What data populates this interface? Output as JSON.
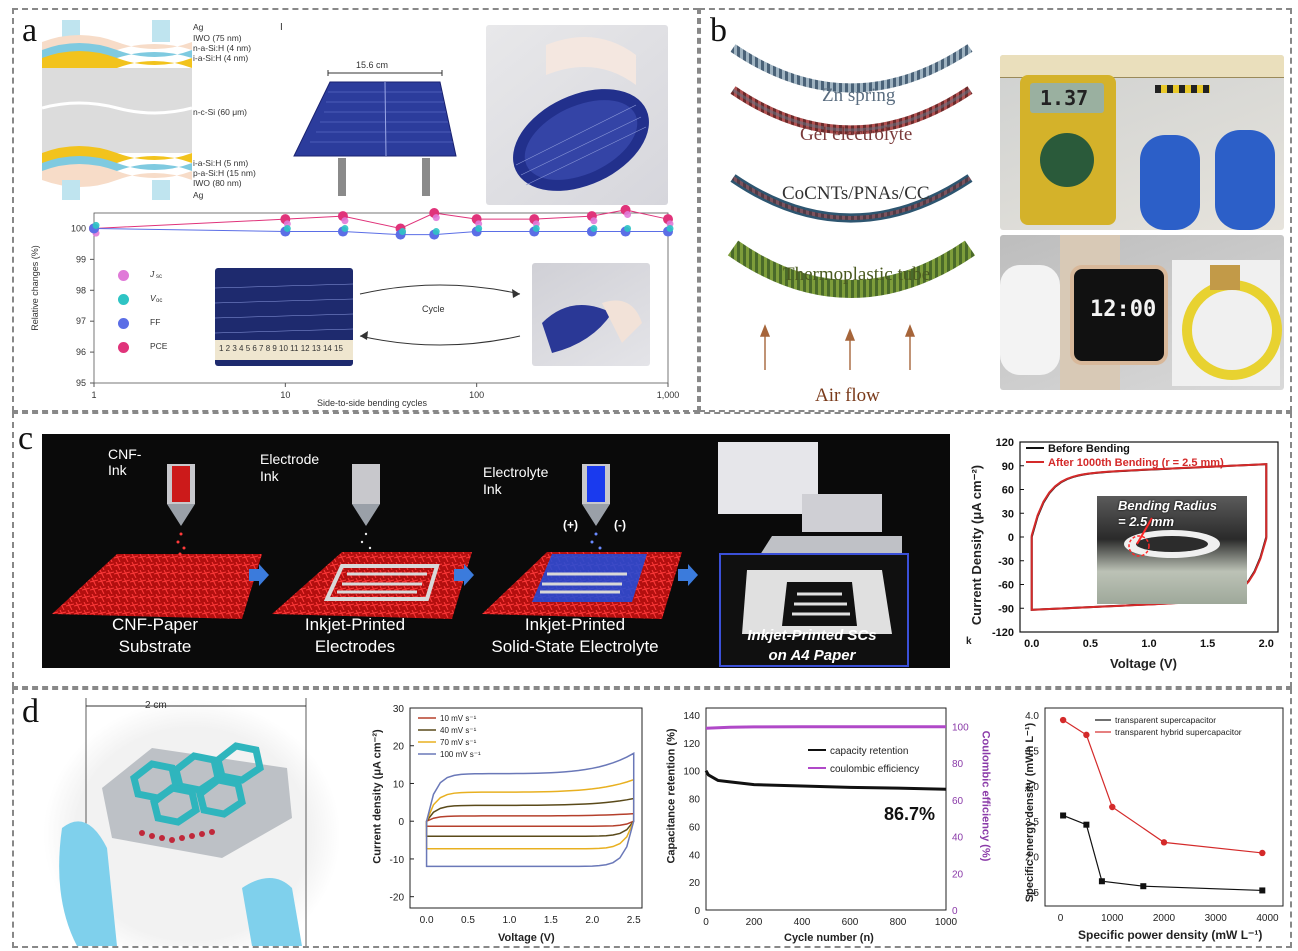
{
  "panel_labels": {
    "a": "a",
    "b": "b",
    "c": "c",
    "d": "d"
  },
  "panel_a": {
    "layer_labels": [
      "Ag",
      "IWO (75 nm)",
      "n-a-Si:H (4 nm)",
      "i-a-Si:H (4 nm)",
      "n-c-Si (60 μm)",
      "i-a-Si:H (5 nm)",
      "p-a-Si:H (15 nm)",
      "IWO (80 nm)",
      "Ag"
    ],
    "marker_I": "I",
    "cell_width": "15.6 cm",
    "chart": {
      "ylabel": "Relative changes (%)",
      "xlabel": "Side-to-side bending cycles",
      "yticks": [
        "100",
        "99",
        "98",
        "97",
        "96",
        "95"
      ],
      "xticks": [
        "1",
        "10",
        "100",
        "1,000"
      ],
      "legend": [
        "J",
        "V",
        "FF",
        "PCE"
      ],
      "legend_subs": [
        "sc",
        "oc"
      ],
      "cycle_label": "Cycle",
      "ruler_text": "1 2 3 4 5 6 7 8 9 10 11 12 13 14 15"
    }
  },
  "panel_b": {
    "labels": [
      "Zn spring",
      "Gel electrolyte",
      "CoCNTs/PNAs/CC",
      "Thermoplastic tube",
      "Air flow"
    ],
    "multimeter_reading": "1.37",
    "watch_time": "12:00"
  },
  "panel_c": {
    "inks": [
      "CNF-Paper Ink",
      "Electrode Ink",
      "Electrolyte Ink"
    ],
    "ink_top": [
      "CNF-",
      "Electrode",
      "Electrolyte"
    ],
    "ink_bottom": [
      "Ink",
      "Ink",
      "Ink"
    ],
    "steps_line1": [
      "CNF-Paper",
      "Inkjet-Printed",
      "Inkjet-Printed"
    ],
    "steps_line2": [
      "Substrate",
      "Electrodes",
      "Solid-State Electrolyte"
    ],
    "polarity": [
      "(+)",
      "(-)"
    ],
    "final_line1": "Inkjet-Printed SCs",
    "final_line2": "on A4 Paper",
    "chart": {
      "ylabel": "Current Density (μA cm⁻²)",
      "xlabel": "Voltage (V)",
      "legend": [
        "Before Bending",
        "After 1000th Bending (r = 2.5 mm)"
      ],
      "yticks": [
        "120",
        "90",
        "60",
        "30",
        "0",
        "-30",
        "-60",
        "-90",
        "-120"
      ],
      "xticks": [
        "0.0",
        "0.5",
        "1.0",
        "1.5",
        "2.0"
      ],
      "inset_line1": "Bending Radius",
      "inset_line2": "= 2.5 mm",
      "corner_k": "k"
    }
  },
  "panel_d": {
    "scale": "2 cm",
    "cv": {
      "ylabel": "Current density (μA cm⁻²)",
      "xlabel": "Voltage (V)",
      "legend": [
        "10 mV s⁻¹",
        "40 mV s⁻¹",
        "70 mV s⁻¹",
        "100 mV s⁻¹"
      ],
      "yticks": [
        "30",
        "20",
        "10",
        "0",
        "-10",
        "-20"
      ],
      "xticks": [
        "0.0",
        "0.5",
        "1.0",
        "1.5",
        "2.0",
        "2.5"
      ],
      "colors": [
        "#b5402c",
        "#5a4a1a",
        "#e8b020",
        "#6a78b8"
      ]
    },
    "cycle": {
      "ylabel": "Capacitance retention (%)",
      "y2label": "Coulombic efficiency (%)",
      "xlabel": "Cycle number (n)",
      "legend": [
        "capacity retention",
        "coulombic efficiency"
      ],
      "annotation": "86.7%",
      "yticks": [
        "140",
        "120",
        "100",
        "80",
        "60",
        "40",
        "20",
        "0"
      ],
      "y2ticks": [
        "100",
        "80",
        "60",
        "40",
        "20",
        "0"
      ],
      "xticks": [
        "0",
        "200",
        "400",
        "600",
        "800",
        "1000"
      ]
    },
    "ragone": {
      "ylabel": "Specific energy density (mWh L⁻¹)",
      "xlabel": "Specific power density (mW L⁻¹)",
      "legend": [
        "transparent supercapacitor",
        "transparent hybrid supercapacitor"
      ],
      "yticks": [
        "4.0",
        "3.5",
        "3.0",
        "2.5",
        "2.0",
        "1.5"
      ],
      "xticks": [
        "0",
        "1000",
        "2000",
        "3000",
        "4000"
      ]
    }
  },
  "chart_data": [
    {
      "type": "scatter",
      "id": "a-bending",
      "xlabel": "Side-to-side bending cycles",
      "ylabel": "Relative changes (%)",
      "xscale": "log",
      "xlim": [
        1,
        1000
      ],
      "ylim": [
        95,
        100.5
      ],
      "series": [
        {
          "name": "PCE",
          "x": [
            1,
            10,
            20,
            40,
            60,
            100,
            200,
            400,
            600,
            1000
          ],
          "y": [
            100,
            100.3,
            100.4,
            100.0,
            100.5,
            100.3,
            100.3,
            100.4,
            100.6,
            100.3
          ]
        },
        {
          "name": "FF",
          "x": [
            1,
            10,
            20,
            40,
            60,
            100,
            200,
            400,
            600,
            1000
          ],
          "y": [
            100,
            99.9,
            99.9,
            99.8,
            99.8,
            99.9,
            99.9,
            99.9,
            99.9,
            99.9
          ]
        }
      ]
    },
    {
      "type": "line",
      "id": "c-cv",
      "xlabel": "Voltage (V)",
      "ylabel": "Current Density (μA cm⁻²)",
      "xlim": [
        -0.1,
        2.1
      ],
      "ylim": [
        -120,
        120
      ],
      "series": [
        {
          "name": "Before Bending",
          "color": "#111111"
        },
        {
          "name": "After 1000th Bending (r = 2.5 mm)",
          "color": "#d42a2a"
        }
      ]
    },
    {
      "type": "line",
      "id": "d-cv",
      "xlabel": "Voltage (V)",
      "ylabel": "Current density (μA cm⁻²)",
      "xlim": [
        -0.2,
        2.6
      ],
      "ylim": [
        -23,
        30
      ],
      "series": [
        {
          "name": "10 mV s⁻¹",
          "amplitude": 2,
          "color": "#b5402c"
        },
        {
          "name": "40 mV s⁻¹",
          "amplitude": 6,
          "color": "#5a4a1a"
        },
        {
          "name": "70 mV s⁻¹",
          "amplitude": 11,
          "color": "#e8b020"
        },
        {
          "name": "100 mV s⁻¹",
          "amplitude": 18,
          "color": "#6a78b8"
        }
      ]
    },
    {
      "type": "line",
      "id": "d-cycle",
      "xlabel": "Cycle number (n)",
      "ylabel": "Capacitance retention (%)",
      "xlim": [
        0,
        1000
      ],
      "ylim": [
        0,
        145
      ],
      "series": [
        {
          "name": "capacity retention",
          "x": [
            0,
            10,
            50,
            100,
            200,
            400,
            600,
            800,
            1000
          ],
          "y": [
            100,
            97,
            93,
            92,
            90,
            89,
            88,
            87.5,
            86.7
          ]
        },
        {
          "name": "coulombic efficiency",
          "x": [
            0,
            100,
            200,
            400,
            600,
            800,
            1000
          ],
          "y": [
            99,
            99.5,
            99.7,
            99.8,
            99.8,
            99.8,
            99.8
          ]
        }
      ]
    },
    {
      "type": "line",
      "id": "d-ragone",
      "xlabel": "Specific power density (mW L⁻¹)",
      "ylabel": "Specific energy density (mWh L⁻¹)",
      "xlim": [
        -300,
        4300
      ],
      "ylim": [
        1.3,
        4.1
      ],
      "series": [
        {
          "name": "transparent supercapacitor",
          "color": "#111111",
          "x": [
            50,
            500,
            800,
            1600,
            3900
          ],
          "y": [
            2.58,
            2.45,
            1.65,
            1.58,
            1.52
          ]
        },
        {
          "name": "transparent hybrid supercapacitor",
          "color": "#d42a2a",
          "x": [
            50,
            500,
            1000,
            2000,
            3900
          ],
          "y": [
            3.93,
            3.72,
            2.7,
            2.2,
            2.05
          ]
        }
      ]
    }
  ]
}
